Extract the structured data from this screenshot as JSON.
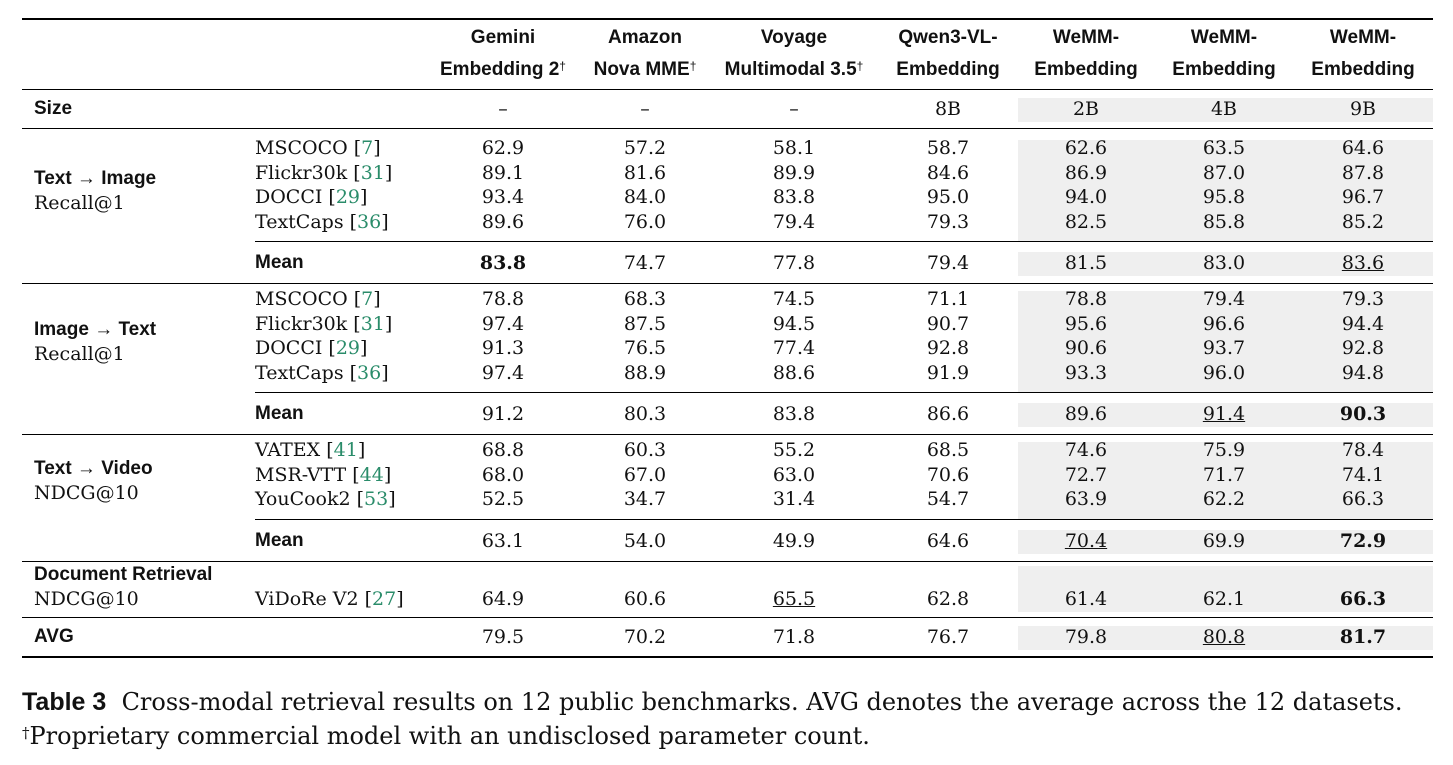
{
  "columns": [
    {
      "line1": "Gemini",
      "line2": "Embedding 2",
      "dagger": "†"
    },
    {
      "line1": "Amazon",
      "line2": "Nova MME",
      "dagger": "†"
    },
    {
      "line1": "Voyage",
      "line2": "Multimodal 3.5",
      "dagger": "†"
    },
    {
      "line1": "Qwen3-VL-",
      "line2": "Embedding",
      "dagger": ""
    },
    {
      "line1": "WeMM-",
      "line2": "Embedding",
      "dagger": ""
    },
    {
      "line1": "WeMM-",
      "line2": "Embedding",
      "dagger": ""
    },
    {
      "line1": "WeMM-",
      "line2": "Embedding",
      "dagger": ""
    }
  ],
  "size": {
    "label": "Size",
    "values": [
      "–",
      "–",
      "–",
      "8B",
      "2B",
      "4B",
      "9B"
    ]
  },
  "groups": [
    {
      "title": "Text → Image",
      "metric": "Recall@1",
      "rows": [
        {
          "name": "MSCOCO",
          "ref": "7",
          "values": [
            "62.9",
            "57.2",
            "58.1",
            "58.7",
            "62.6",
            "63.5",
            "64.6"
          ]
        },
        {
          "name": "Flickr30k",
          "ref": "31",
          "values": [
            "89.1",
            "81.6",
            "89.9",
            "84.6",
            "86.9",
            "87.0",
            "87.8"
          ]
        },
        {
          "name": "DOCCI",
          "ref": "29",
          "values": [
            "93.4",
            "84.0",
            "83.8",
            "95.0",
            "94.0",
            "95.8",
            "96.7"
          ]
        },
        {
          "name": "TextCaps",
          "ref": "36",
          "values": [
            "89.6",
            "76.0",
            "79.4",
            "79.3",
            "82.5",
            "85.8",
            "85.2"
          ]
        }
      ],
      "mean": {
        "label": "Mean",
        "values": [
          "83.8",
          "74.7",
          "77.8",
          "79.4",
          "81.5",
          "83.0",
          "83.6"
        ],
        "bold": [
          0
        ],
        "underline": [
          6
        ]
      }
    },
    {
      "title": "Image → Text",
      "metric": "Recall@1",
      "rows": [
        {
          "name": "MSCOCO",
          "ref": "7",
          "values": [
            "78.8",
            "68.3",
            "74.5",
            "71.1",
            "78.8",
            "79.4",
            "79.3"
          ]
        },
        {
          "name": "Flickr30k",
          "ref": "31",
          "values": [
            "97.4",
            "87.5",
            "94.5",
            "90.7",
            "95.6",
            "96.6",
            "94.4"
          ]
        },
        {
          "name": "DOCCI",
          "ref": "29",
          "values": [
            "91.3",
            "76.5",
            "77.4",
            "92.8",
            "90.6",
            "93.7",
            "92.8"
          ]
        },
        {
          "name": "TextCaps",
          "ref": "36",
          "values": [
            "97.4",
            "88.9",
            "88.6",
            "91.9",
            "93.3",
            "96.0",
            "94.8"
          ]
        }
      ],
      "mean": {
        "label": "Mean",
        "values": [
          "91.2",
          "80.3",
          "83.8",
          "86.6",
          "89.6",
          "91.4",
          "90.3"
        ],
        "bold": [
          6
        ],
        "underline": [
          5
        ]
      }
    },
    {
      "title": "Text → Video",
      "metric": "NDCG@10",
      "rows": [
        {
          "name": "VATEX",
          "ref": "41",
          "values": [
            "68.8",
            "60.3",
            "55.2",
            "68.5",
            "74.6",
            "75.9",
            "78.4"
          ]
        },
        {
          "name": "MSR-VTT",
          "ref": "44",
          "values": [
            "68.0",
            "67.0",
            "63.0",
            "70.6",
            "72.7",
            "71.7",
            "74.1"
          ]
        },
        {
          "name": "YouCook2",
          "ref": "53",
          "values": [
            "52.5",
            "34.7",
            "31.4",
            "54.7",
            "63.9",
            "62.2",
            "66.3"
          ]
        }
      ],
      "mean": {
        "label": "Mean",
        "values": [
          "63.1",
          "54.0",
          "49.9",
          "64.6",
          "70.4",
          "69.9",
          "72.9"
        ],
        "bold": [
          6
        ],
        "underline": [
          4
        ]
      }
    }
  ],
  "document": {
    "title": "Document Retrieval",
    "metric": "NDCG@10",
    "row": {
      "name": "ViDoRe V2",
      "ref": "27",
      "values": [
        "64.9",
        "60.6",
        "65.5",
        "62.8",
        "61.4",
        "62.1",
        "66.3"
      ],
      "bold": [
        6
      ],
      "underline": [
        2
      ]
    }
  },
  "avg": {
    "label": "AVG",
    "values": [
      "79.5",
      "70.2",
      "71.8",
      "76.7",
      "79.8",
      "80.8",
      "81.7"
    ],
    "bold": [
      6
    ],
    "underline": [
      5
    ]
  },
  "caption": {
    "label": "Table 3",
    "text": "Cross-modal retrieval results on 12 public benchmarks. AVG denotes the average across the 12 datasets.",
    "footnote_mark": "†",
    "footnote": "Proprietary commercial model with an undisclosed parameter count."
  },
  "colors": {
    "shade": "#efefef",
    "ref": "#2a8c6a",
    "rule": "#000000"
  }
}
